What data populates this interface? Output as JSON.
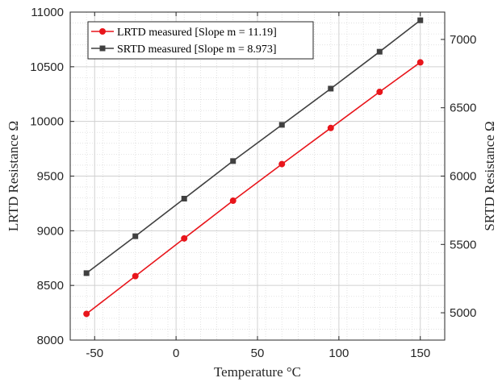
{
  "chart_data": {
    "type": "line",
    "title": "",
    "x": [
      -55,
      -25,
      5,
      35,
      65,
      95,
      125,
      150
    ],
    "xlabel": "Temperature °C",
    "xlim": [
      -65,
      165
    ],
    "xticks": [
      -50,
      0,
      50,
      100,
      150
    ],
    "ylabel_left": "LRTD Resistance Ω",
    "ylim_left": [
      8000,
      11000
    ],
    "yticks_left": [
      8000,
      8500,
      9000,
      9500,
      10000,
      10500,
      11000
    ],
    "ylabel_right": "SRTD Resistance Ω",
    "ylim_right": [
      4800,
      7200
    ],
    "yticks_right": [
      5000,
      5500,
      6000,
      6500,
      7000
    ],
    "grid": true,
    "minor_grid": true,
    "legend_position": "top-left",
    "series": [
      {
        "name": "LRTD measured [Slope m = 11.19]",
        "axis": "left",
        "color": "#e8151b",
        "marker": "circle",
        "values": [
          8240,
          8585,
          8930,
          9275,
          9610,
          9940,
          10270,
          10540
        ]
      },
      {
        "name": "SRTD measured [Slope m = 8.973]",
        "axis": "right",
        "color": "#404040",
        "marker": "square",
        "values": [
          5290,
          5560,
          5835,
          6110,
          6375,
          6640,
          6910,
          7140
        ]
      }
    ]
  }
}
